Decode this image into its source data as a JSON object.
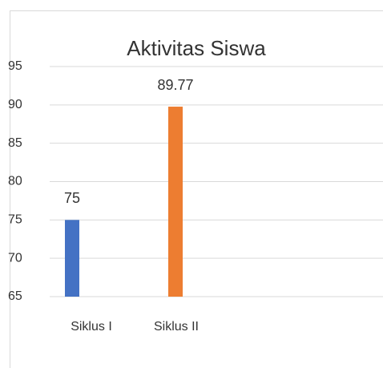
{
  "chart_data": {
    "type": "bar",
    "title": "Aktivitas Siswa",
    "categories": [
      "Siklus I",
      "Siklus II"
    ],
    "values": [
      75,
      89.77
    ],
    "colors": [
      "#4472c4",
      "#ed7d31"
    ],
    "ylim": [
      65,
      95
    ],
    "yticks": [
      65,
      70,
      75,
      80,
      85,
      90,
      95
    ],
    "grid": true,
    "data_labels": true
  }
}
